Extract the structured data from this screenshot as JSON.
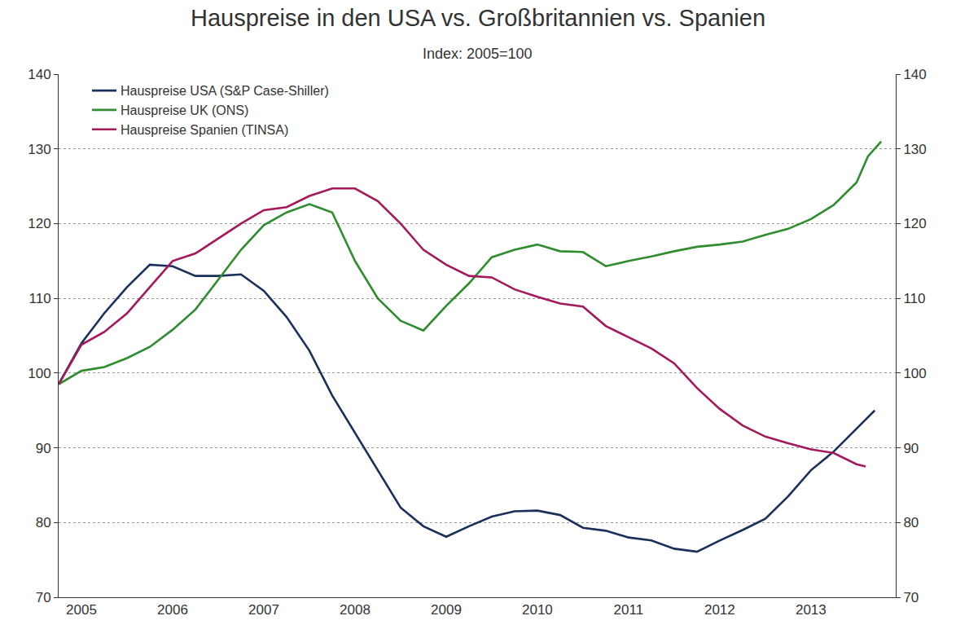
{
  "chart_data": {
    "type": "line",
    "title": "Hauspreise in den USA vs. Großbritannien vs. Spanien",
    "subtitle": "Index: 2005=100",
    "xlim": [
      2005.25,
      2014.43
    ],
    "xticks": [
      {
        "value": 2005.5,
        "label": "2005"
      },
      {
        "value": 2006.5,
        "label": "2006"
      },
      {
        "value": 2007.5,
        "label": "2007"
      },
      {
        "value": 2008.5,
        "label": "2008"
      },
      {
        "value": 2009.5,
        "label": "2009"
      },
      {
        "value": 2010.5,
        "label": "2010"
      },
      {
        "value": 2011.5,
        "label": "2011"
      },
      {
        "value": 2012.5,
        "label": "2012"
      },
      {
        "value": 2013.5,
        "label": "2013"
      }
    ],
    "ylim": [
      70,
      140
    ],
    "yticks": [
      70,
      80,
      90,
      100,
      110,
      120,
      130,
      140
    ],
    "y2lim": [
      70,
      140
    ],
    "y2ticks": [
      70,
      80,
      90,
      100,
      110,
      120,
      130,
      140
    ],
    "grid": true,
    "legend": "upper left",
    "series": [
      {
        "name": "Hauspreise USA (S&P Case-Shiller)",
        "color": "#1b2f5b",
        "x": [
          2005.25,
          2005.5,
          2005.75,
          2006,
          2006.25,
          2006.5,
          2006.75,
          2007,
          2007.25,
          2007.5,
          2007.75,
          2008,
          2008.25,
          2008.5,
          2008.75,
          2009,
          2009.25,
          2009.5,
          2009.75,
          2010,
          2010.25,
          2010.5,
          2010.75,
          2011,
          2011.25,
          2011.5,
          2011.75,
          2012,
          2012.25,
          2012.5,
          2012.75,
          2013,
          2013.25,
          2013.5,
          2013.75,
          2014,
          2014.2
        ],
        "values": [
          98.5,
          104,
          108,
          111.5,
          114.5,
          114.3,
          113,
          113,
          113.2,
          111,
          107.5,
          103,
          97,
          92,
          87,
          82,
          79.5,
          78.1,
          79.5,
          80.8,
          81.5,
          81.6,
          81,
          79.3,
          78.9,
          78,
          77.6,
          76.5,
          76.1,
          77.6,
          79,
          80.5,
          83.5,
          87,
          89.5,
          92.5,
          95
        ]
      },
      {
        "name": "Hauspreise UK (ONS)",
        "color": "#2f8c2f",
        "x": [
          2005.25,
          2005.5,
          2005.75,
          2006,
          2006.25,
          2006.5,
          2006.75,
          2007,
          2007.25,
          2007.5,
          2007.75,
          2008,
          2008.25,
          2008.5,
          2008.75,
          2009,
          2009.25,
          2009.5,
          2009.75,
          2010,
          2010.25,
          2010.5,
          2010.75,
          2011,
          2011.25,
          2011.5,
          2011.75,
          2012,
          2012.25,
          2012.5,
          2012.75,
          2013,
          2013.25,
          2013.5,
          2013.75,
          2014,
          2014.125,
          2014.27
        ],
        "values": [
          98.5,
          100.3,
          100.8,
          102,
          103.5,
          105.8,
          108.5,
          112.5,
          116.5,
          119.8,
          121.5,
          122.6,
          121.5,
          115,
          110,
          107,
          105.7,
          109,
          112,
          115.5,
          116.5,
          117.2,
          116.3,
          116.2,
          114.3,
          115,
          115.6,
          116.3,
          116.9,
          117.2,
          117.6,
          118.5,
          119.3,
          120.6,
          122.5,
          125.5,
          129,
          131
        ]
      },
      {
        "name": "Hauspreise Spanien (TINSA)",
        "color": "#a3195b",
        "x": [
          2005.25,
          2005.5,
          2005.75,
          2006,
          2006.25,
          2006.5,
          2006.75,
          2007,
          2007.25,
          2007.5,
          2007.75,
          2008,
          2008.25,
          2008.5,
          2008.75,
          2009,
          2009.25,
          2009.5,
          2009.75,
          2010,
          2010.25,
          2010.5,
          2010.75,
          2011,
          2011.25,
          2011.5,
          2011.75,
          2012,
          2012.25,
          2012.5,
          2012.75,
          2013,
          2013.25,
          2013.5,
          2013.75,
          2014,
          2014.1
        ],
        "values": [
          98.5,
          103.8,
          105.5,
          108,
          111.5,
          115,
          116,
          118,
          120,
          121.8,
          122.2,
          123.7,
          124.7,
          124.7,
          123,
          120,
          116.5,
          114.5,
          113,
          112.8,
          111.2,
          110.2,
          109.3,
          108.9,
          106.3,
          104.8,
          103.3,
          101.3,
          98,
          95.2,
          93,
          91.5,
          90.6,
          89.8,
          89.3,
          87.8,
          87.5
        ]
      }
    ]
  }
}
